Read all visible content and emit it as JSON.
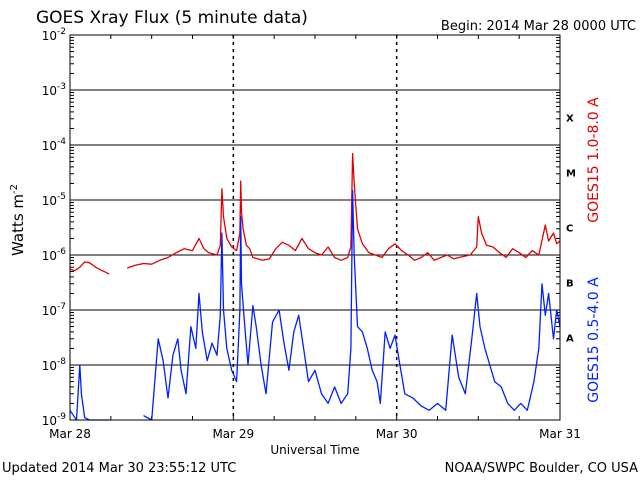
{
  "chart_data": {
    "type": "line",
    "title": "GOES Xray Flux (5 minute data)",
    "begin_label": "Begin:  2014 Mar 28 0000 UTC",
    "xlabel": "Universal Time",
    "ylabel": "Watts m",
    "ylabel_sup": "-2",
    "footer_left": "Updated 2014 Mar 30 23:55:12 UTC",
    "footer_right": "NOAA/SWPC Boulder, CO USA",
    "y_scale": "log",
    "ylim": [
      "1e-9",
      "1e-2"
    ],
    "y_ticks": [
      {
        "base": "10",
        "exp": "-9",
        "value": 1e-09
      },
      {
        "base": "10",
        "exp": "-8",
        "value": 1e-08
      },
      {
        "base": "10",
        "exp": "-7",
        "value": 1e-07
      },
      {
        "base": "10",
        "exp": "-6",
        "value": 1e-06
      },
      {
        "base": "10",
        "exp": "-5",
        "value": 1e-05
      },
      {
        "base": "10",
        "exp": "-4",
        "value": 0.0001
      },
      {
        "base": "10",
        "exp": "-3",
        "value": 0.001
      },
      {
        "base": "10",
        "exp": "-2",
        "value": 0.01
      }
    ],
    "x_ticks": [
      {
        "label": "Mar 28",
        "day": 0
      },
      {
        "label": "Mar 29",
        "day": 1
      },
      {
        "label": "Mar 30",
        "day": 2
      },
      {
        "label": "Mar 31",
        "day": 3
      }
    ],
    "xlim_days": [
      0,
      3
    ],
    "flare_classes": [
      {
        "label": "A",
        "value": 1e-08
      },
      {
        "label": "B",
        "value": 1e-07
      },
      {
        "label": "C",
        "value": 1e-06
      },
      {
        "label": "M",
        "value": 1e-05
      },
      {
        "label": "X",
        "value": 0.0001
      }
    ],
    "grid": true,
    "series": [
      {
        "name": "GOES15 1.0-8.0 A",
        "color": "#e00000",
        "points": [
          [
            0.0,
            5.5e-07
          ],
          [
            0.03,
            5.2e-07
          ],
          [
            0.06,
            6e-07
          ],
          [
            0.09,
            7.5e-07
          ],
          [
            0.12,
            7.2e-07
          ],
          [
            0.15,
            6.2e-07
          ],
          [
            0.18,
            5.5e-07
          ],
          [
            0.21,
            5e-07
          ],
          [
            0.24,
            4.5e-07
          ],
          [
            0.35,
            5.8e-07
          ],
          [
            0.4,
            6.5e-07
          ],
          [
            0.45,
            7e-07
          ],
          [
            0.5,
            6.8e-07
          ],
          [
            0.55,
            8e-07
          ],
          [
            0.6,
            9e-07
          ],
          [
            0.65,
            1.1e-06
          ],
          [
            0.7,
            1.3e-06
          ],
          [
            0.75,
            1.2e-06
          ],
          [
            0.79,
            2e-06
          ],
          [
            0.82,
            1.3e-06
          ],
          [
            0.85,
            1.1e-06
          ],
          [
            0.9,
            1e-06
          ],
          [
            0.92,
            1.5e-06
          ],
          [
            0.93,
            1.6e-05
          ],
          [
            0.94,
            5e-06
          ],
          [
            0.96,
            2e-06
          ],
          [
            0.99,
            1.4e-06
          ],
          [
            1.02,
            1.2e-06
          ],
          [
            1.04,
            2.5e-06
          ],
          [
            1.045,
            2.2e-05
          ],
          [
            1.05,
            6e-06
          ],
          [
            1.06,
            3e-06
          ],
          [
            1.08,
            1.5e-06
          ],
          [
            1.1,
            1.3e-06
          ],
          [
            1.12,
            9e-07
          ],
          [
            1.15,
            8.5e-07
          ],
          [
            1.18,
            8e-07
          ],
          [
            1.22,
            8.5e-07
          ],
          [
            1.26,
            1.3e-06
          ],
          [
            1.3,
            1.7e-06
          ],
          [
            1.34,
            1.5e-06
          ],
          [
            1.38,
            1.2e-06
          ],
          [
            1.42,
            2e-06
          ],
          [
            1.46,
            1.3e-06
          ],
          [
            1.5,
            1.1e-06
          ],
          [
            1.54,
            1e-06
          ],
          [
            1.58,
            1.4e-06
          ],
          [
            1.62,
            9e-07
          ],
          [
            1.66,
            8e-07
          ],
          [
            1.7,
            9e-07
          ],
          [
            1.72,
            1.4e-06
          ],
          [
            1.73,
            7e-05
          ],
          [
            1.74,
            2e-05
          ],
          [
            1.76,
            3e-06
          ],
          [
            1.79,
            1.6e-06
          ],
          [
            1.83,
            1.1e-06
          ],
          [
            1.87,
            1e-06
          ],
          [
            1.91,
            9e-07
          ],
          [
            1.95,
            1.3e-06
          ],
          [
            1.99,
            1.6e-06
          ],
          [
            2.03,
            1.2e-06
          ],
          [
            2.07,
            1e-06
          ],
          [
            2.11,
            8e-07
          ],
          [
            2.15,
            9e-07
          ],
          [
            2.19,
            1.1e-06
          ],
          [
            2.23,
            8e-07
          ],
          [
            2.27,
            9e-07
          ],
          [
            2.31,
            1e-06
          ],
          [
            2.35,
            8.5e-07
          ],
          [
            2.38,
            9e-07
          ],
          [
            2.45,
            1e-06
          ],
          [
            2.49,
            1.4e-06
          ],
          [
            2.5,
            5e-06
          ],
          [
            2.52,
            2.5e-06
          ],
          [
            2.55,
            1.5e-06
          ],
          [
            2.59,
            1.4e-06
          ],
          [
            2.63,
            1.1e-06
          ],
          [
            2.67,
            9e-07
          ],
          [
            2.71,
            1.3e-06
          ],
          [
            2.75,
            1.1e-06
          ],
          [
            2.79,
            9e-07
          ],
          [
            2.83,
            1.2e-06
          ],
          [
            2.87,
            1e-06
          ],
          [
            2.91,
            3.5e-06
          ],
          [
            2.93,
            1.8e-06
          ],
          [
            2.96,
            2.5e-06
          ],
          [
            2.98,
            1.6e-06
          ],
          [
            3.0,
            1.8e-06
          ]
        ]
      },
      {
        "name": "GOES15 0.5-4.0 A",
        "color": "#0020ff",
        "points": [
          [
            0.0,
            1.5e-09
          ],
          [
            0.04,
            1e-09
          ],
          [
            0.06,
            1e-08
          ],
          [
            0.07,
            3e-09
          ],
          [
            0.09,
            1.1e-09
          ],
          [
            0.12,
            1e-09
          ],
          [
            0.18,
            1e-09
          ],
          [
            0.24,
            1e-09
          ],
          [
            0.35,
            1e-09
          ],
          [
            0.45,
            1.2e-09
          ],
          [
            0.5,
            1e-09
          ],
          [
            0.54,
            3e-08
          ],
          [
            0.57,
            1.2e-08
          ],
          [
            0.6,
            2.5e-09
          ],
          [
            0.63,
            1.5e-08
          ],
          [
            0.66,
            3e-08
          ],
          [
            0.68,
            8e-09
          ],
          [
            0.71,
            3e-09
          ],
          [
            0.74,
            5e-08
          ],
          [
            0.77,
            2e-08
          ],
          [
            0.79,
            2e-07
          ],
          [
            0.81,
            4e-08
          ],
          [
            0.84,
            1.2e-08
          ],
          [
            0.87,
            2.5e-08
          ],
          [
            0.9,
            1.5e-08
          ],
          [
            0.92,
            8e-08
          ],
          [
            0.93,
            2.5e-06
          ],
          [
            0.94,
            1e-07
          ],
          [
            0.96,
            2e-08
          ],
          [
            0.99,
            8e-09
          ],
          [
            1.02,
            5e-09
          ],
          [
            1.04,
            1e-07
          ],
          [
            1.045,
            5e-06
          ],
          [
            1.05,
            3e-07
          ],
          [
            1.07,
            5e-08
          ],
          [
            1.09,
            1e-08
          ],
          [
            1.12,
            1.2e-07
          ],
          [
            1.14,
            5e-08
          ],
          [
            1.17,
            1e-08
          ],
          [
            1.2,
            3e-09
          ],
          [
            1.24,
            6e-08
          ],
          [
            1.28,
            1e-07
          ],
          [
            1.31,
            2.5e-08
          ],
          [
            1.34,
            8e-09
          ],
          [
            1.37,
            4e-08
          ],
          [
            1.4,
            8e-08
          ],
          [
            1.43,
            2e-08
          ],
          [
            1.46,
            5e-09
          ],
          [
            1.5,
            8e-09
          ],
          [
            1.54,
            3e-09
          ],
          [
            1.58,
            2e-09
          ],
          [
            1.62,
            4e-09
          ],
          [
            1.66,
            2e-09
          ],
          [
            1.7,
            3e-09
          ],
          [
            1.72,
            2e-08
          ],
          [
            1.73,
            1.5e-05
          ],
          [
            1.74,
            1e-06
          ],
          [
            1.76,
            5e-08
          ],
          [
            1.79,
            4e-08
          ],
          [
            1.82,
            2e-08
          ],
          [
            1.85,
            8e-09
          ],
          [
            1.88,
            5e-09
          ],
          [
            1.9,
            2e-09
          ],
          [
            1.93,
            4e-08
          ],
          [
            1.96,
            2e-08
          ],
          [
            1.99,
            3.5e-08
          ],
          [
            2.02,
            1e-08
          ],
          [
            2.05,
            3e-09
          ],
          [
            2.1,
            2.5e-09
          ],
          [
            2.15,
            1.8e-09
          ],
          [
            2.2,
            1.5e-09
          ],
          [
            2.25,
            2e-09
          ],
          [
            2.3,
            1.5e-09
          ],
          [
            2.34,
            3.5e-08
          ],
          [
            2.38,
            6e-09
          ],
          [
            2.42,
            3e-09
          ],
          [
            2.46,
            3e-08
          ],
          [
            2.49,
            2e-07
          ],
          [
            2.51,
            5e-08
          ],
          [
            2.54,
            2e-08
          ],
          [
            2.57,
            1e-08
          ],
          [
            2.6,
            5e-09
          ],
          [
            2.64,
            4e-09
          ],
          [
            2.68,
            2e-09
          ],
          [
            2.72,
            1.5e-09
          ],
          [
            2.76,
            2e-09
          ],
          [
            2.8,
            1.5e-09
          ],
          [
            2.84,
            5e-09
          ],
          [
            2.87,
            2e-08
          ],
          [
            2.89,
            3e-07
          ],
          [
            2.91,
            8e-08
          ],
          [
            2.93,
            2e-07
          ],
          [
            2.96,
            3e-08
          ],
          [
            2.98,
            1e-07
          ],
          [
            3.0,
            5e-08
          ]
        ]
      }
    ]
  }
}
